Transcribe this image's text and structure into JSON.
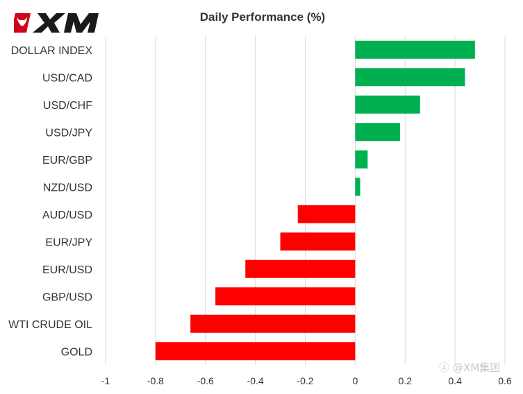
{
  "brand": {
    "name": "XM",
    "logo_icon": "xm-bull-logo-icon",
    "color": "#d0021b"
  },
  "watermark": {
    "text": "@XM集团",
    "icon": "zhihu-icon"
  },
  "chart_data": {
    "type": "bar",
    "orientation": "horizontal",
    "title": "Daily Performance (%)",
    "xlabel": "",
    "ylabel": "",
    "categories": [
      "DOLLAR INDEX",
      "USD/CAD",
      "USD/CHF",
      "USD/JPY",
      "EUR/GBP",
      "NZD/USD",
      "AUD/USD",
      "EUR/JPY",
      "EUR/USD",
      "GBP/USD",
      "WTI CRUDE OIL",
      "GOLD"
    ],
    "values": [
      0.48,
      0.44,
      0.26,
      0.18,
      0.05,
      0.02,
      -0.23,
      -0.3,
      -0.44,
      -0.56,
      -0.66,
      -0.8
    ],
    "xlim": [
      -1,
      0.6
    ],
    "xticks": [
      "-1",
      "-0.8",
      "-0.6",
      "-0.4",
      "-0.2",
      "0",
      "0.2",
      "0.4",
      "0.6"
    ],
    "grid": true,
    "legend": "none",
    "colors": {
      "positive": "#00b050",
      "negative": "#ff0000",
      "grid": "#d9d9d9"
    }
  }
}
